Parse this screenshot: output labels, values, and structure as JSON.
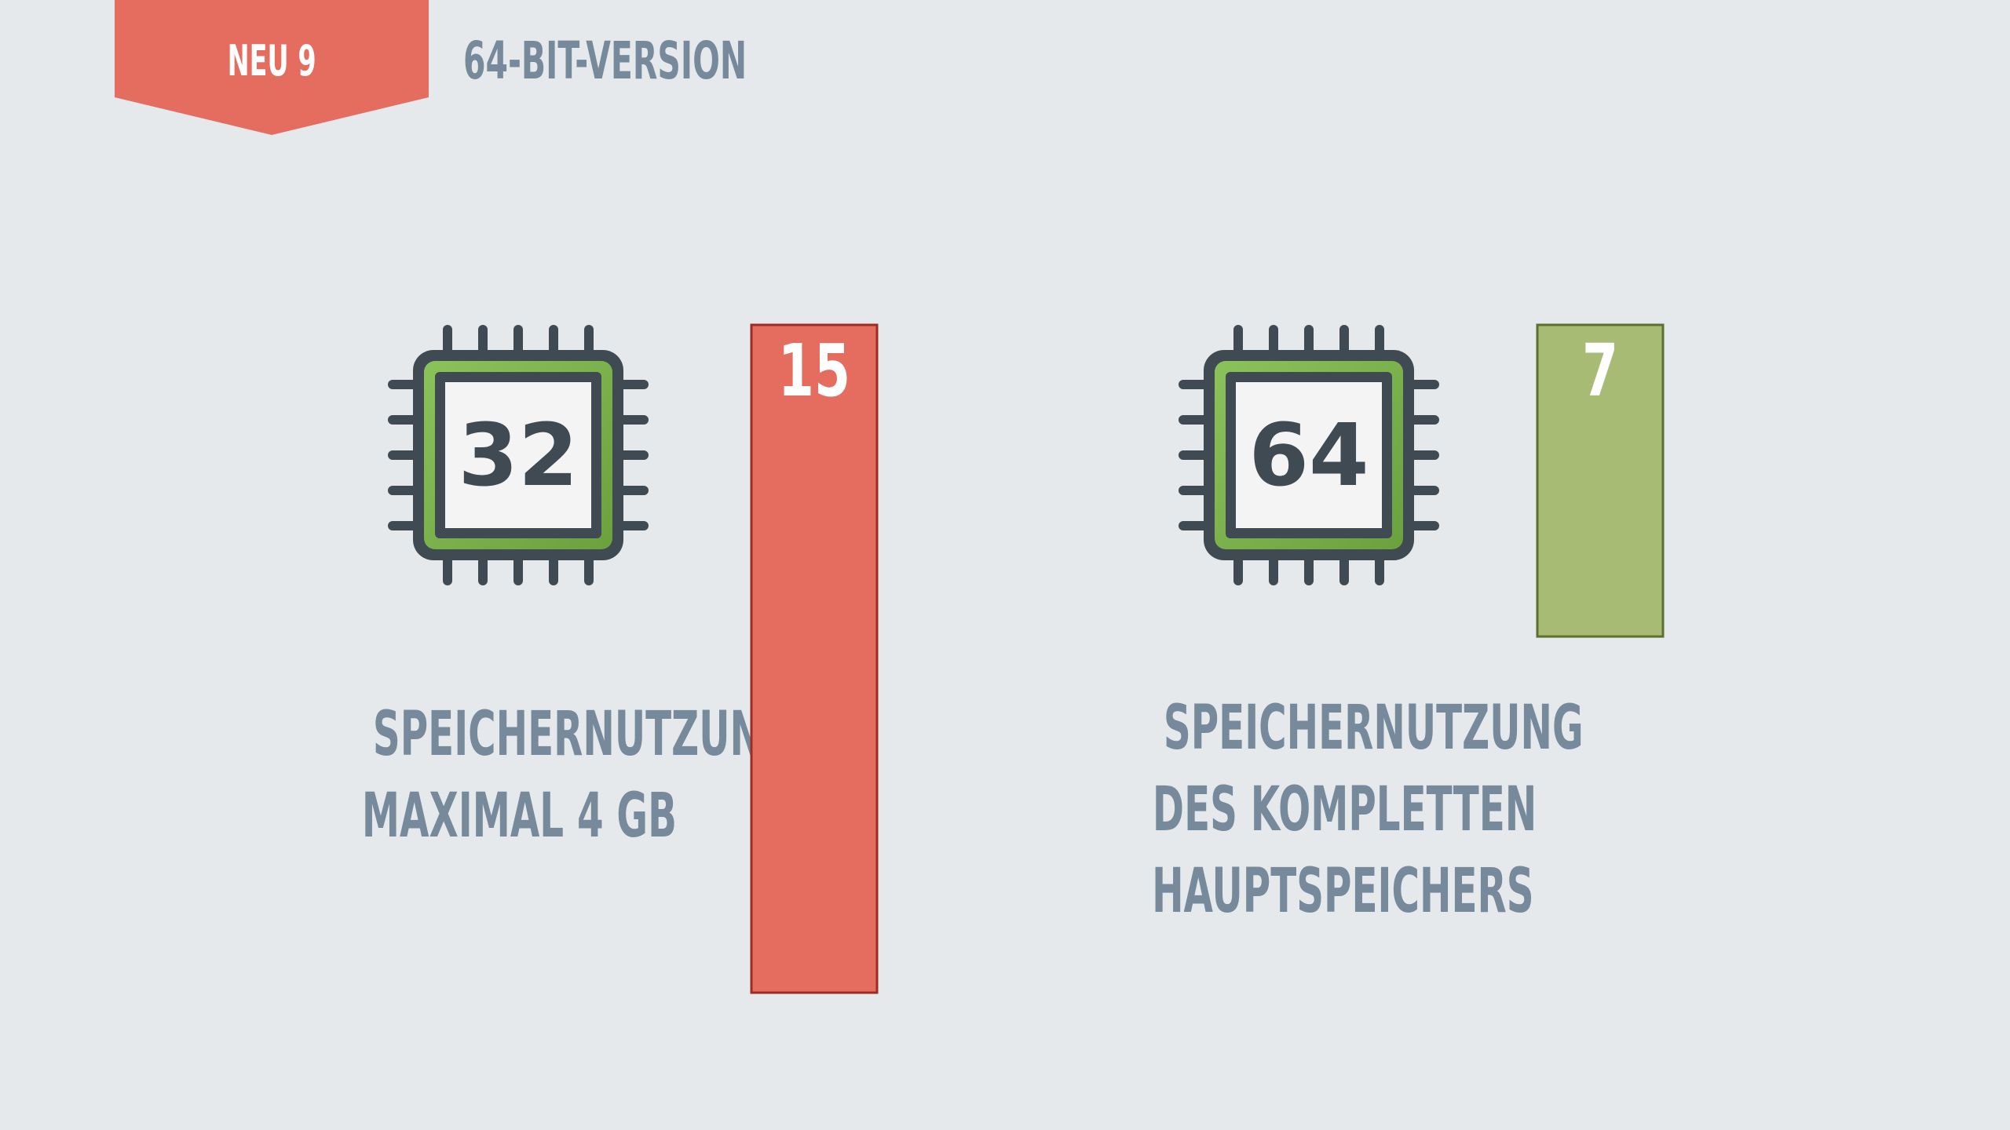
{
  "header": {
    "badge": "NEU 9",
    "title": "64-BIT-VERSION"
  },
  "colors": {
    "background": "#e6e9ec",
    "accent_red": "#e46d60",
    "accent_green": "#a7bb74",
    "text_slate": "#778a9c",
    "chip_dark": "#3f4a52",
    "chip_green": "#7ab24b"
  },
  "chips": [
    {
      "label": "32",
      "icon": "cpu-chip-icon"
    },
    {
      "label": "64",
      "icon": "cpu-chip-icon"
    }
  ],
  "captions": {
    "left": [
      "SPEICHERNUTZUNG",
      "MAXIMAL 4 GB"
    ],
    "right": [
      "SPEICHERNUTZUNG",
      "DES KOMPLETTEN",
      "HAUPTSPEICHERS"
    ]
  },
  "chart_data": {
    "type": "bar",
    "categories": [
      "32",
      "64"
    ],
    "values": [
      15,
      7
    ],
    "data_labels": [
      "15",
      "7"
    ],
    "colors": [
      "#e46d60",
      "#a7bb74"
    ],
    "ylim": [
      0,
      15
    ],
    "grid": false
  }
}
